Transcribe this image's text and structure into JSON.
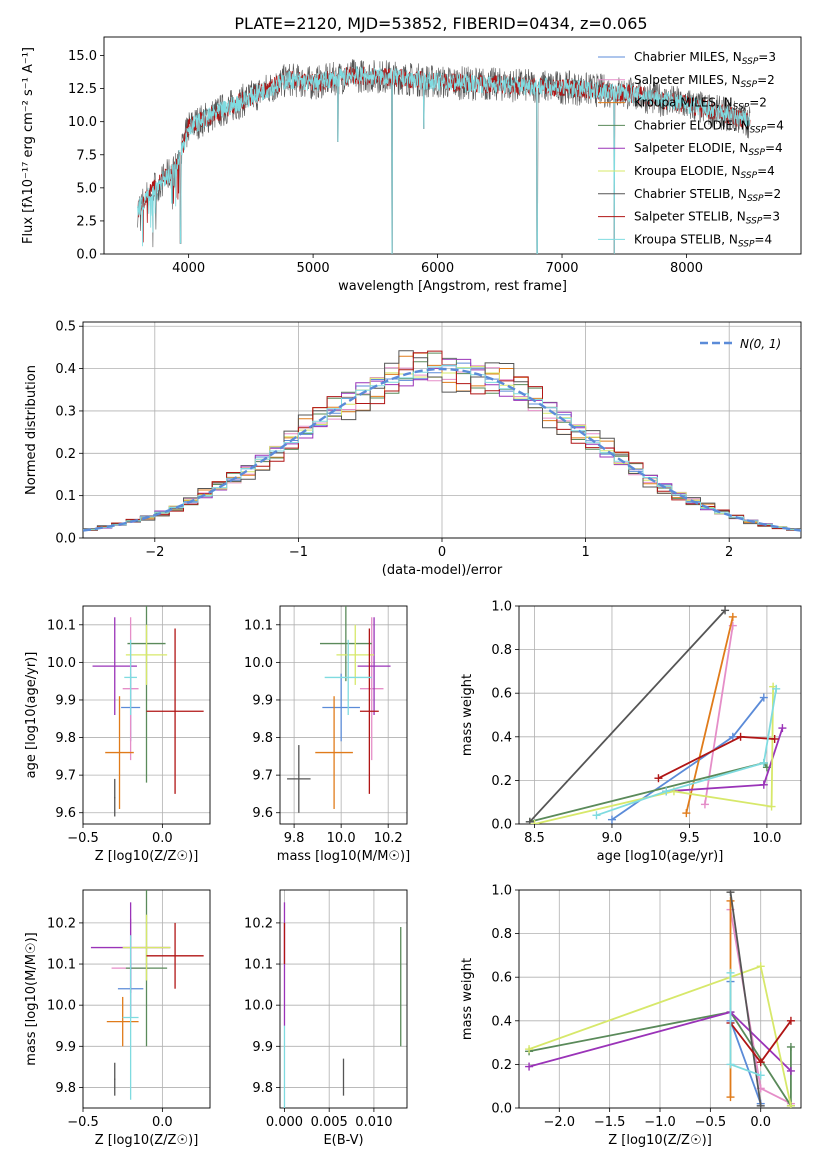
{
  "title": "PLATE=2120, MJD=53852, FIBERID=0434, z=0.065",
  "colors": {
    "chabrier_miles": "#5b8bd8",
    "salpeter_miles": "#e58ec8",
    "kroupa_miles": "#e07b1a",
    "chabrier_elodie": "#5a8a5a",
    "salpeter_elodie": "#9a33b8",
    "kroupa_elodie": "#d7e86a",
    "chabrier_stelib": "#555555",
    "salpeter_stelib": "#b01515",
    "kroupa_stelib": "#7fdbe0",
    "gaussian": "#5b8bd8"
  },
  "legend": [
    {
      "text": "Chabrier MILES, N",
      "sub": "SSP",
      "tail": "=3",
      "color_key": "chabrier_miles"
    },
    {
      "text": "Salpeter MILES, N",
      "sub": "SSP",
      "tail": "=2",
      "color_key": "salpeter_miles"
    },
    {
      "text": "Kroupa MILES, N",
      "sub": "SSP",
      "tail": "=2",
      "color_key": "kroupa_miles"
    },
    {
      "text": "Chabrier ELODIE, N",
      "sub": "SSP",
      "tail": "=4",
      "color_key": "chabrier_elodie"
    },
    {
      "text": "Salpeter ELODIE, N",
      "sub": "SSP",
      "tail": "=4",
      "color_key": "salpeter_elodie"
    },
    {
      "text": "Kroupa ELODIE, N",
      "sub": "SSP",
      "tail": "=4",
      "color_key": "kroupa_elodie"
    },
    {
      "text": "Chabrier STELIB, N",
      "sub": "SSP",
      "tail": "=2",
      "color_key": "chabrier_stelib"
    },
    {
      "text": "Salpeter STELIB, N",
      "sub": "SSP",
      "tail": "=3",
      "color_key": "salpeter_stelib"
    },
    {
      "text": "Kroupa STELIB, N",
      "sub": "SSP",
      "tail": "=4",
      "color_key": "kroupa_stelib"
    }
  ],
  "chart_data": [
    {
      "id": "spectrum",
      "type": "line",
      "xlabel": "wavelength [Angstrom, rest frame]",
      "ylabel": "Flux [fλ10⁻¹⁷ erg cm⁻² s⁻¹ A⁻¹]",
      "xlim": [
        3320,
        8920
      ],
      "ylim": [
        0,
        16.4
      ],
      "xticks": [
        "4000",
        "5000",
        "6000",
        "7000",
        "8000"
      ],
      "yticks": [
        "0.0",
        "2.5",
        "5.0",
        "7.5",
        "10.0",
        "12.5",
        "15.0"
      ],
      "xtick_values": [
        4000,
        5000,
        6000,
        7000,
        8000
      ],
      "ytick_values": [
        0,
        2.5,
        5,
        7.5,
        10,
        12.5,
        15
      ],
      "wave_range": [
        3590,
        8510
      ],
      "continuum": {
        "x": [
          3590,
          3700,
          3900,
          4000,
          4300,
          4600,
          4800,
          5000,
          5300,
          5600,
          6000,
          6500,
          7000,
          7500,
          8000,
          8300,
          8510
        ],
        "y": [
          3.3,
          4.8,
          6.5,
          9.6,
          11.0,
          12.3,
          13.2,
          12.9,
          13.5,
          13.4,
          13.0,
          12.8,
          12.6,
          12.2,
          11.3,
          10.6,
          10.0
        ]
      },
      "dips": [
        {
          "x": 3935,
          "y": 0.8
        },
        {
          "x": 5200,
          "y": 8.5
        },
        {
          "x": 5635,
          "y": 0.0
        },
        {
          "x": 5890,
          "y": 9.5
        },
        {
          "x": 6800,
          "y": 0.0
        },
        {
          "x": 7420,
          "y": 0.0
        }
      ],
      "grid": false
    },
    {
      "id": "residuals",
      "type": "histogram",
      "xlabel": "(data-model)/error",
      "ylabel": "Normed distribution",
      "xlim": [
        -2.5,
        2.5
      ],
      "ylim": [
        0,
        0.51
      ],
      "xticks": [
        "−2",
        "−1",
        "0",
        "1",
        "2"
      ],
      "yticks": [
        "0.0",
        "0.1",
        "0.2",
        "0.3",
        "0.4",
        "0.5"
      ],
      "xtick_values": [
        -2,
        -1,
        0,
        1,
        2
      ],
      "ytick_values": [
        0,
        0.1,
        0.2,
        0.3,
        0.4,
        0.5
      ],
      "bin_width": 0.1,
      "jitter": [
        0.02,
        -0.03,
        0.05,
        -0.04,
        0.03,
        -0.02,
        0.06,
        -0.05,
        0.01
      ],
      "gaussian_label": "N(0, 1)",
      "grid": true
    },
    {
      "id": "age-vs-Z",
      "type": "errorbar",
      "xlabel": "Z [log10(Z/Z☉)]",
      "ylabel": "age  [log10(age/yr)]",
      "xlim": [
        -0.5,
        0.3
      ],
      "ylim": [
        9.57,
        10.15
      ],
      "xticks": [
        "−0.5",
        "0.0"
      ],
      "yticks": [
        "9.6",
        "9.7",
        "9.8",
        "9.9",
        "10.0",
        "10.1"
      ],
      "xtick_values": [
        -0.5,
        0
      ],
      "ytick_values": [
        9.6,
        9.7,
        9.8,
        9.9,
        10.0,
        10.1
      ],
      "points": [
        {
          "color_key": "chabrier_miles",
          "x": -0.2,
          "xerr": 0.06,
          "y": 9.88,
          "yerr": 0.09
        },
        {
          "color_key": "salpeter_miles",
          "x": -0.2,
          "xerr": 0.05,
          "y": 9.93,
          "yerr": 0.19
        },
        {
          "color_key": "kroupa_miles",
          "x": -0.27,
          "xerr": 0.09,
          "y": 9.76,
          "yerr": 0.15
        },
        {
          "color_key": "chabrier_elodie",
          "x": -0.1,
          "xerr": 0.12,
          "y": 10.05,
          "yerr": 0.37
        },
        {
          "color_key": "salpeter_elodie",
          "x": -0.3,
          "xerr": 0.14,
          "y": 9.99,
          "yerr": 0.13
        },
        {
          "color_key": "kroupa_elodie",
          "x": -0.1,
          "xerr": 0.13,
          "y": 10.02,
          "yerr": 0.08
        },
        {
          "color_key": "chabrier_stelib",
          "x": -0.3,
          "xerr": 0.004,
          "y": 9.64,
          "yerr": 0.05
        },
        {
          "color_key": "salpeter_stelib",
          "x": 0.08,
          "xerr": 0.18,
          "y": 9.87,
          "yerr": 0.22
        },
        {
          "color_key": "kroupa_stelib",
          "x": -0.2,
          "xerr": 0.04,
          "y": 9.96,
          "yerr": 0.1
        }
      ],
      "grid": true
    },
    {
      "id": "age-vs-mass",
      "type": "errorbar",
      "xlabel": "mass [log10(M/M☉)]",
      "ylabel": "",
      "xlim": [
        9.74,
        10.28
      ],
      "ylim": [
        9.57,
        10.15
      ],
      "xticks": [
        "9.8",
        "10.0",
        "10.2"
      ],
      "yticks": [
        "9.6",
        "9.7",
        "9.8",
        "9.9",
        "10.0",
        "10.1"
      ],
      "xtick_values": [
        9.8,
        10.0,
        10.2
      ],
      "ytick_values": [
        9.6,
        9.7,
        9.8,
        9.9,
        10.0,
        10.1
      ],
      "points": [
        {
          "color_key": "chabrier_miles",
          "x": 10.0,
          "xerr": 0.08,
          "y": 9.88,
          "yerr": 0.09
        },
        {
          "color_key": "salpeter_miles",
          "x": 10.13,
          "xerr": 0.05,
          "y": 9.93,
          "yerr": 0.19
        },
        {
          "color_key": "kroupa_miles",
          "x": 9.97,
          "xerr": 0.08,
          "y": 9.76,
          "yerr": 0.15
        },
        {
          "color_key": "chabrier_elodie",
          "x": 10.02,
          "xerr": 0.11,
          "y": 10.05,
          "yerr": 0.1
        },
        {
          "color_key": "salpeter_elodie",
          "x": 10.14,
          "xerr": 0.07,
          "y": 9.99,
          "yerr": 0.13
        },
        {
          "color_key": "kroupa_elodie",
          "x": 10.06,
          "xerr": 0.08,
          "y": 10.02,
          "yerr": 0.08
        },
        {
          "color_key": "chabrier_stelib",
          "x": 9.82,
          "xerr": 0.05,
          "y": 9.69,
          "yerr": 0.09
        },
        {
          "color_key": "salpeter_stelib",
          "x": 10.12,
          "xerr": 0.04,
          "y": 9.87,
          "yerr": 0.22
        },
        {
          "color_key": "kroupa_stelib",
          "x": 10.03,
          "xerr": 0.1,
          "y": 9.96,
          "yerr": 0.1
        }
      ],
      "grid": true
    },
    {
      "id": "weight-vs-age",
      "type": "line",
      "xlabel": "age  [log10(age/yr)]",
      "ylabel": "mass weight",
      "xlim": [
        8.4,
        10.22
      ],
      "ylim": [
        0,
        1
      ],
      "xticks": [
        "8.5",
        "9.0",
        "9.5",
        "10.0"
      ],
      "yticks": [
        "0.0",
        "0.2",
        "0.4",
        "0.6",
        "0.8",
        "1.0"
      ],
      "xtick_values": [
        8.5,
        9.0,
        9.5,
        10.0
      ],
      "ytick_values": [
        0,
        0.2,
        0.4,
        0.6,
        0.8,
        1.0
      ],
      "series": [
        {
          "color_key": "chabrier_miles",
          "x": [
            9.0,
            9.78,
            9.98
          ],
          "y": [
            0.02,
            0.4,
            0.58
          ]
        },
        {
          "color_key": "salpeter_miles",
          "x": [
            9.6,
            9.78
          ],
          "y": [
            0.09,
            0.91
          ]
        },
        {
          "color_key": "kroupa_miles",
          "x": [
            9.48,
            9.78
          ],
          "y": [
            0.05,
            0.95
          ]
        },
        {
          "color_key": "chabrier_elodie",
          "x": [
            8.47,
            9.98,
            10.0
          ],
          "y": [
            0.01,
            0.28,
            0.26
          ]
        },
        {
          "color_key": "salpeter_elodie",
          "x": [
            9.35,
            9.98,
            10.1
          ],
          "y": [
            0.15,
            0.18,
            0.44
          ]
        },
        {
          "color_key": "kroupa_elodie",
          "x": [
            8.5,
            9.4,
            10.03,
            10.04
          ],
          "y": [
            0.0,
            0.15,
            0.08,
            0.63
          ]
        },
        {
          "color_key": "chabrier_stelib",
          "x": [
            8.47,
            9.73
          ],
          "y": [
            0.01,
            0.98
          ]
        },
        {
          "color_key": "salpeter_stelib",
          "x": [
            9.3,
            9.83,
            10.05
          ],
          "y": [
            0.21,
            0.4,
            0.39
          ]
        },
        {
          "color_key": "kroupa_stelib",
          "x": [
            8.9,
            9.35,
            9.98,
            10.06
          ],
          "y": [
            0.04,
            0.15,
            0.28,
            0.62
          ]
        }
      ],
      "grid": true
    },
    {
      "id": "mass-vs-Z",
      "type": "errorbar",
      "xlabel": "Z [log10(Z/Z☉)]",
      "ylabel": "mass [log10(M/M☉)]",
      "xlim": [
        -0.5,
        0.3
      ],
      "ylim": [
        9.75,
        10.28
      ],
      "xticks": [
        "−0.5",
        "0.0"
      ],
      "yticks": [
        "9.8",
        "9.9",
        "10.0",
        "10.1",
        "10.2"
      ],
      "xtick_values": [
        -0.5,
        0
      ],
      "ytick_values": [
        9.8,
        9.9,
        10.0,
        10.1,
        10.2
      ],
      "points": [
        {
          "color_key": "chabrier_miles",
          "x": -0.2,
          "xerr": 0.08,
          "y": 10.04,
          "yerr": 0.07
        },
        {
          "color_key": "salpeter_miles",
          "x": -0.2,
          "xerr": 0.12,
          "y": 10.09,
          "yerr": 0.12
        },
        {
          "color_key": "kroupa_miles",
          "x": -0.25,
          "xerr": 0.1,
          "y": 9.96,
          "yerr": 0.06
        },
        {
          "color_key": "chabrier_elodie",
          "x": -0.1,
          "xerr": 0.13,
          "y": 10.09,
          "yerr": 0.19
        },
        {
          "color_key": "salpeter_elodie",
          "x": -0.2,
          "xerr": 0.25,
          "y": 10.14,
          "yerr": 0.11
        },
        {
          "color_key": "kroupa_elodie",
          "x": -0.1,
          "xerr": 0.15,
          "y": 10.14,
          "yerr": 0.08
        },
        {
          "color_key": "chabrier_stelib",
          "x": -0.3,
          "xerr": 0.004,
          "y": 9.82,
          "yerr": 0.04
        },
        {
          "color_key": "salpeter_stelib",
          "x": 0.08,
          "xerr": 0.18,
          "y": 10.12,
          "yerr": 0.08
        },
        {
          "color_key": "kroupa_stelib",
          "x": -0.2,
          "xerr": 0.05,
          "y": 9.97,
          "yerr": 0.2
        }
      ],
      "grid": true
    },
    {
      "id": "mass-vs-ebv",
      "type": "errorbar",
      "xlabel": "E(B-V)",
      "ylabel": "",
      "xlim": [
        -0.0005,
        0.0137
      ],
      "ylim": [
        9.75,
        10.28
      ],
      "xticks": [
        "0.000",
        "0.005",
        "0.010"
      ],
      "yticks": [
        "9.8",
        "9.9",
        "10.0",
        "10.1",
        "10.2"
      ],
      "xtick_values": [
        0,
        0.005,
        0.01
      ],
      "ytick_values": [
        9.8,
        9.9,
        10.0,
        10.1,
        10.2
      ],
      "points": [
        {
          "color_key": "salpeter_elodie",
          "x": 0.0,
          "xerr": 0,
          "y": 10.1,
          "yerr": 0.15
        },
        {
          "color_key": "salpeter_stelib",
          "x": 0.0,
          "xerr": 0,
          "y": 10.15,
          "yerr": 0.05
        },
        {
          "color_key": "kroupa_stelib",
          "x": 0.0,
          "xerr": 0,
          "y": 9.85,
          "yerr": 0.1
        },
        {
          "color_key": "chabrier_stelib",
          "x": 0.0066,
          "xerr": 0,
          "y": 9.825,
          "yerr": 0.045
        },
        {
          "color_key": "chabrier_elodie",
          "x": 0.013,
          "xerr": 0,
          "y": 10.045,
          "yerr": 0.145
        }
      ],
      "grid": true
    },
    {
      "id": "weight-vs-Z",
      "type": "line",
      "xlabel": "Z [log10(Z/Z☉)]",
      "ylabel": "mass weight",
      "xlim": [
        -2.4,
        0.4
      ],
      "ylim": [
        0,
        1
      ],
      "xticks": [
        "−2.0",
        "−1.5",
        "−1.0",
        "−0.5",
        "0.0"
      ],
      "yticks": [
        "0.0",
        "0.2",
        "0.4",
        "0.6",
        "0.8",
        "1.0"
      ],
      "xtick_values": [
        -2.0,
        -1.5,
        -1.0,
        -0.5,
        0.0
      ],
      "ytick_values": [
        0,
        0.2,
        0.4,
        0.6,
        0.8,
        1.0
      ],
      "series": [
        {
          "color_key": "chabrier_miles",
          "x": [
            -0.3,
            -0.3,
            0.0
          ],
          "y": [
            0.58,
            0.4,
            0.02
          ]
        },
        {
          "color_key": "salpeter_miles",
          "x": [
            -0.3,
            0.0,
            0.3
          ],
          "y": [
            0.91,
            0.09,
            0.02
          ]
        },
        {
          "color_key": "kroupa_miles",
          "x": [
            -0.3,
            -0.3
          ],
          "y": [
            0.05,
            0.95
          ]
        },
        {
          "color_key": "chabrier_elodie",
          "x": [
            -2.3,
            -0.3,
            0.3,
            0.3
          ],
          "y": [
            0.26,
            0.44,
            0.01,
            0.28
          ]
        },
        {
          "color_key": "salpeter_elodie",
          "x": [
            -2.3,
            -0.3,
            0.3
          ],
          "y": [
            0.19,
            0.44,
            0.17
          ]
        },
        {
          "color_key": "kroupa_elodie",
          "x": [
            -2.3,
            0.0,
            0.3
          ],
          "y": [
            0.27,
            0.65,
            0.01
          ]
        },
        {
          "color_key": "chabrier_stelib",
          "x": [
            -0.3,
            0.0
          ],
          "y": [
            0.99,
            0.01
          ]
        },
        {
          "color_key": "salpeter_stelib",
          "x": [
            -0.3,
            0.0,
            0.3
          ],
          "y": [
            0.39,
            0.21,
            0.4
          ]
        },
        {
          "color_key": "kroupa_stelib",
          "x": [
            -0.3,
            -0.3,
            0.0
          ],
          "y": [
            0.62,
            0.2,
            0.15
          ]
        }
      ],
      "grid": true
    }
  ]
}
